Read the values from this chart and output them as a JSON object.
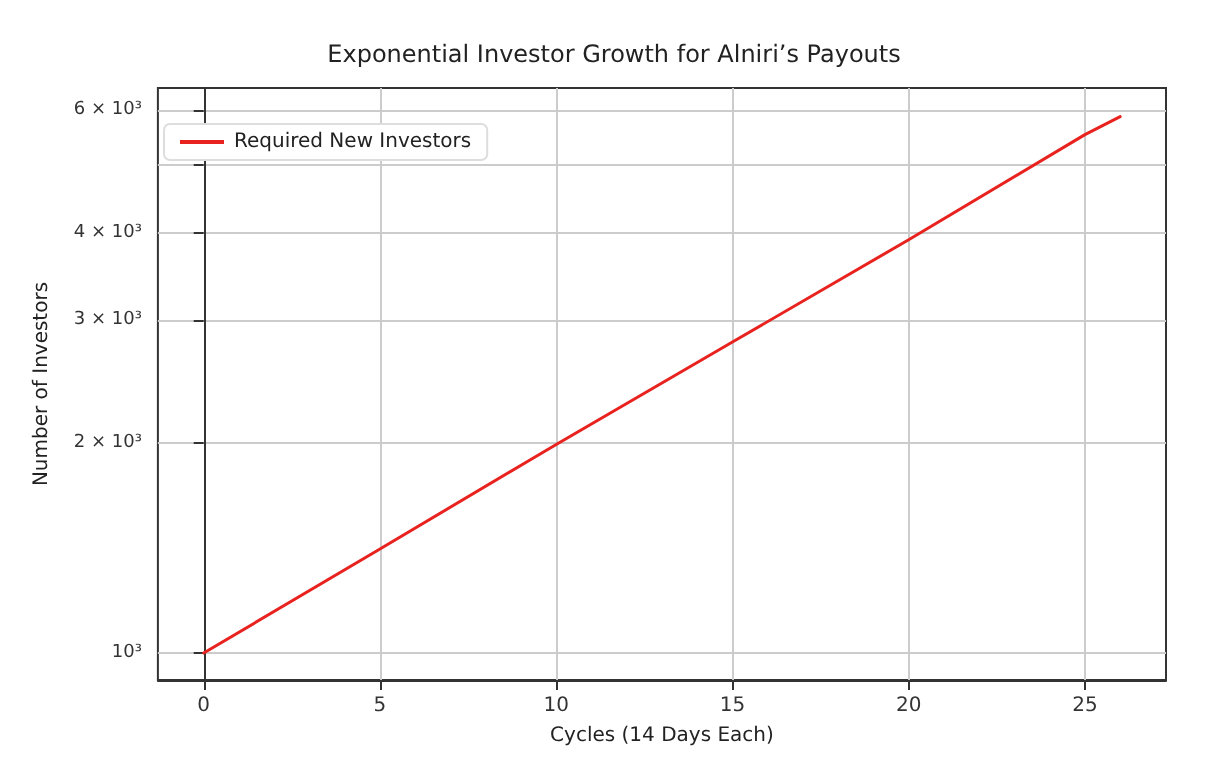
{
  "chart_data": {
    "type": "line",
    "title": "Exponential Investor Growth for Alniri’s Payouts",
    "xlabel": "Cycles (14 Days Each)",
    "ylabel": "Number of Investors",
    "series": [
      {
        "name": "Required New Investors",
        "color": "#e8221e",
        "x": [
          0,
          5,
          10,
          15,
          20,
          25,
          26
        ],
        "values": [
          1000,
          1410,
          1990,
          2790,
          3910,
          5530,
          5870
        ]
      }
    ],
    "xlim": [
      -1.3,
      27.3
    ],
    "xticks": [
      0,
      5,
      10,
      15,
      20,
      25
    ],
    "ylim": [
      915,
      6450
    ],
    "yticks": [
      {
        "value": 1000,
        "label": "10³"
      },
      {
        "value": 2000,
        "label": "2 × 10³"
      },
      {
        "value": 3000,
        "label": "3 × 10³"
      },
      {
        "value": 4000,
        "label": "4 × 10³"
      },
      {
        "value": 5000,
        "label": null
      },
      {
        "value": 6000,
        "label": "6 × 10³"
      }
    ],
    "log": "y",
    "grid": true,
    "legend": "top left",
    "marker": "none",
    "line_style": "solid"
  }
}
